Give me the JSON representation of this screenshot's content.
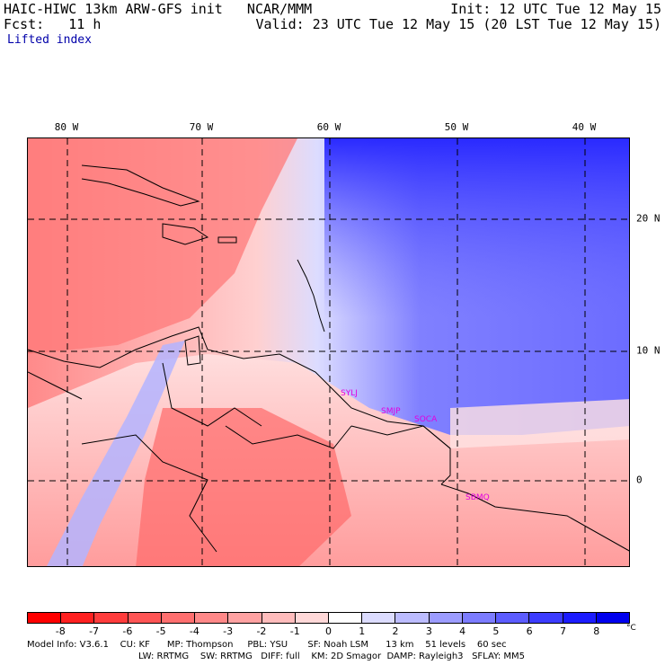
{
  "header": {
    "title": "HAIC-HIWC 13km ARW-GFS init   NCAR/MMM",
    "init": "Init: 12 UTC Tue 12 May 15",
    "fcst": "Fcst:   11 h",
    "valid": "Valid: 23 UTC Tue 12 May 15 (20 LST Tue 12 May 15)",
    "field": "Lifted index"
  },
  "map": {
    "lon_labels": [
      "80 W",
      "70 W",
      "60 W",
      "50 W",
      "40 W"
    ],
    "lat_labels": [
      "20 N",
      "10 N",
      "0"
    ],
    "stations": [
      "SYLJ",
      "SMJP",
      "SOCA",
      "SBMQ"
    ]
  },
  "colorbar": {
    "labels": [
      "-8",
      "-7",
      "-6",
      "-5",
      "-4",
      "-3",
      "-2",
      "-1",
      "0",
      "1",
      "2",
      "3",
      "4",
      "5",
      "6",
      "7",
      "8"
    ],
    "unit": "°C",
    "colors": [
      "#ff0000",
      "#ff2020",
      "#ff3c3c",
      "#ff5555",
      "#ff6f6f",
      "#ff8888",
      "#ffa2a2",
      "#ffbcbc",
      "#ffd8d8",
      "#ffffff",
      "#dcdcff",
      "#bcbcff",
      "#9c9cff",
      "#7c7cff",
      "#5c5cff",
      "#3c3cff",
      "#1c1cff",
      "#0000ee"
    ]
  },
  "footer": {
    "line1": "Model Info: V3.6.1    CU: KF      MP: Thompson     PBL: YSU       SF: Noah LSM      13 km    51 levels    60 sec",
    "line2": "LW: RRTMG    SW: RRTMG   DIFF: full    KM: 2D Smagor  DAMP: Rayleigh3   SFLAY: MM5"
  }
}
